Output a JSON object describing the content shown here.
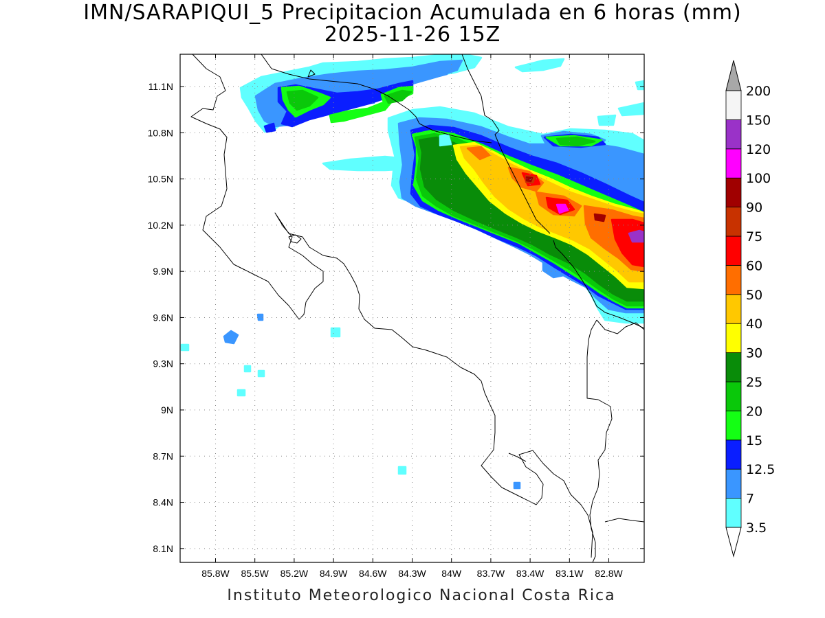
{
  "title": "IMN/SARAPIQUI_5 Precipitacion Acumulada en 6 horas (mm)",
  "subtitle": "2025-11-26 15Z",
  "footer": "Instituto Meteorologico Nacional Costa Rica",
  "map": {
    "lon_range": [
      -86.07,
      -82.53
    ],
    "lat_range": [
      8.01,
      11.31
    ],
    "lon_ticks": [
      {
        "value": -85.8,
        "label": "85.8W"
      },
      {
        "value": -85.5,
        "label": "85.5W"
      },
      {
        "value": -85.2,
        "label": "85.2W"
      },
      {
        "value": -84.9,
        "label": "84.9W"
      },
      {
        "value": -84.6,
        "label": "84.6W"
      },
      {
        "value": -84.3,
        "label": "84.3W"
      },
      {
        "value": -84.0,
        "label": "84W"
      },
      {
        "value": -83.7,
        "label": "83.7W"
      },
      {
        "value": -83.4,
        "label": "83.4W"
      },
      {
        "value": -83.1,
        "label": "83.1W"
      },
      {
        "value": -82.8,
        "label": "82.8W"
      }
    ],
    "lat_ticks": [
      {
        "value": 11.1,
        "label": "11.1N"
      },
      {
        "value": 10.8,
        "label": "10.8N"
      },
      {
        "value": 10.5,
        "label": "10.5N"
      },
      {
        "value": 10.2,
        "label": "10.2N"
      },
      {
        "value": 9.9,
        "label": "9.9N"
      },
      {
        "value": 9.6,
        "label": "9.6N"
      },
      {
        "value": 9.3,
        "label": "9.3N"
      },
      {
        "value": 9.0,
        "label": "9N"
      },
      {
        "value": 8.7,
        "label": "8.7N"
      },
      {
        "value": 8.4,
        "label": "8.4N"
      },
      {
        "value": 8.1,
        "label": "8.1N"
      }
    ],
    "grid": "dotted"
  },
  "legend": {
    "levels": [
      "3.5",
      "7",
      "12.5",
      "15",
      "20",
      "25",
      "30",
      "40",
      "50",
      "60",
      "75",
      "90",
      "100",
      "120",
      "150",
      "200"
    ],
    "colors": [
      "#60ffff",
      "#3a96ff",
      "#0a1eff",
      "#14ff14",
      "#0ac80a",
      "#098c09",
      "#ffff00",
      "#ffc800",
      "#ff6e00",
      "#ff0000",
      "#c83200",
      "#a00000",
      "#ff00ff",
      "#9a32c8",
      "#f5f5f5"
    ],
    "over_color": "#a8a8a8",
    "under_color": "#ffffff"
  }
}
